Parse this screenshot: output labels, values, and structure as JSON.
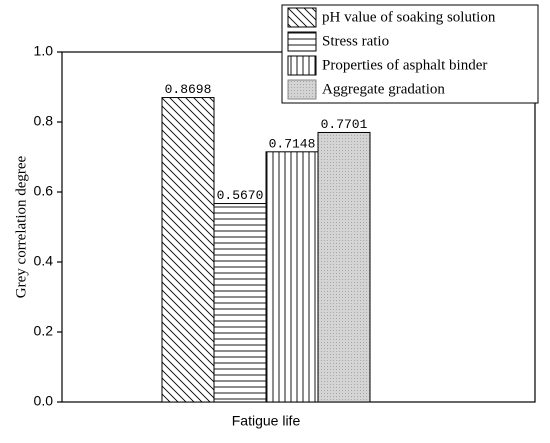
{
  "chart_data": {
    "type": "bar",
    "categories": [
      "Fatigue life"
    ],
    "y_label": "Grey correlation degree",
    "series": [
      {
        "name": "pH value of soaking solution",
        "color": "#000000",
        "pattern": "diagonal",
        "values": [
          0.8698
        ],
        "value_labels": [
          "0.8698"
        ]
      },
      {
        "name": "Stress ratio",
        "color": "#000000",
        "pattern": "horizontal",
        "values": [
          0.567
        ],
        "value_labels": [
          "0.5670"
        ]
      },
      {
        "name": "Properties of asphalt binder",
        "color": "#000000",
        "pattern": "vertical",
        "values": [
          0.7148
        ],
        "value_labels": [
          "0.7148"
        ]
      },
      {
        "name": "Aggregate gradation",
        "color": "#c8c8c8",
        "pattern": "dots",
        "values": [
          0.7701
        ],
        "value_labels": [
          "0.7701"
        ]
      }
    ],
    "ylim": [
      0,
      1.0
    ],
    "yticks": [
      {
        "value": 0,
        "label": "0.0"
      },
      0.2,
      0.4,
      0.6,
      0.8,
      {
        "value": 1.0,
        "label": "1.0"
      }
    ],
    "legend": "top-right"
  }
}
